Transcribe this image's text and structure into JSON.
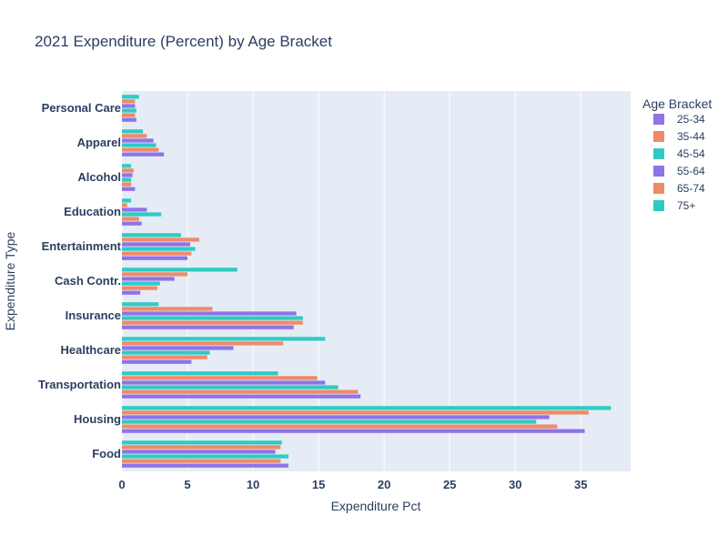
{
  "chart_data": {
    "type": "bar",
    "orientation": "horizontal",
    "title": "2021 Expenditure (Percent) by Age Bracket",
    "xlabel": "Expenditure Pct",
    "ylabel": "Expenditure Type",
    "xlim": [
      0,
      38.8
    ],
    "x_ticks": [
      0,
      5,
      10,
      15,
      20,
      25,
      30,
      35
    ],
    "grid": true,
    "legend": {
      "title": "Age Bracket",
      "placement": "top-right"
    },
    "categories": [
      "Food",
      "Housing",
      "Transportation",
      "Healthcare",
      "Insurance",
      "Cash Contr.",
      "Entertainment",
      "Education",
      "Alcohol",
      "Apparel",
      "Personal Care"
    ],
    "series": [
      {
        "name": "25-34",
        "color": "#8f73e8",
        "values": [
          12.7,
          35.3,
          18.2,
          5.3,
          13.1,
          1.4,
          5.0,
          1.5,
          1.0,
          3.2,
          1.1
        ]
      },
      {
        "name": "35-44",
        "color": "#ef8a69",
        "values": [
          12.1,
          33.2,
          18.0,
          6.5,
          13.8,
          2.7,
          5.3,
          1.3,
          0.7,
          2.8,
          1.0
        ]
      },
      {
        "name": "45-54",
        "color": "#2fcbc2",
        "values": [
          12.7,
          31.6,
          16.5,
          6.7,
          13.8,
          2.9,
          5.6,
          3.0,
          0.7,
          2.6,
          1.1
        ]
      },
      {
        "name": "55-64",
        "color": "#8f73e8",
        "values": [
          11.7,
          32.6,
          15.5,
          8.5,
          13.3,
          4.0,
          5.2,
          1.9,
          0.8,
          2.4,
          1.0
        ]
      },
      {
        "name": "65-74",
        "color": "#ef8a69",
        "values": [
          12.1,
          35.6,
          14.9,
          12.3,
          6.9,
          5.0,
          5.9,
          0.4,
          0.9,
          1.9,
          1.0
        ]
      },
      {
        "name": "75+",
        "color": "#2fcbc2",
        "values": [
          12.2,
          37.3,
          11.9,
          15.5,
          2.8,
          8.8,
          4.5,
          0.7,
          0.7,
          1.6,
          1.3
        ]
      }
    ]
  }
}
